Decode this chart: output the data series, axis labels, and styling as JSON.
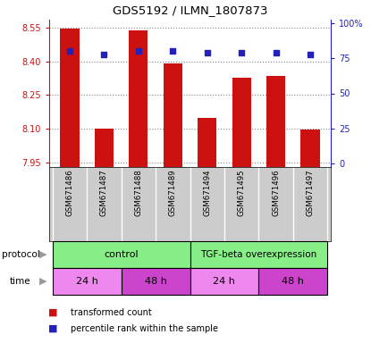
{
  "title": "GDS5192 / ILMN_1807873",
  "samples": [
    "GSM671486",
    "GSM671487",
    "GSM671488",
    "GSM671489",
    "GSM671494",
    "GSM671495",
    "GSM671496",
    "GSM671497"
  ],
  "bar_values": [
    8.545,
    8.102,
    8.537,
    8.39,
    8.148,
    8.325,
    8.335,
    8.095
  ],
  "percentile_values": [
    80,
    78,
    80,
    80,
    79,
    79,
    79,
    78
  ],
  "ylim_left": [
    7.93,
    8.585
  ],
  "ylim_right": [
    -2.5,
    102.5
  ],
  "yticks_left": [
    7.95,
    8.1,
    8.25,
    8.4,
    8.55
  ],
  "yticks_right": [
    0,
    25,
    50,
    75,
    100
  ],
  "bar_color": "#cc1111",
  "square_color": "#2222bb",
  "bar_bottom": 7.93,
  "protocol_color": "#88ee88",
  "time_color_light": "#ee88ee",
  "time_color_dark": "#cc44cc",
  "legend_red": "transformed count",
  "legend_blue": "percentile rank within the sample",
  "bg_sample_color": "#cccccc",
  "left_axis_color": "#cc1111",
  "right_axis_color": "#2222bb"
}
